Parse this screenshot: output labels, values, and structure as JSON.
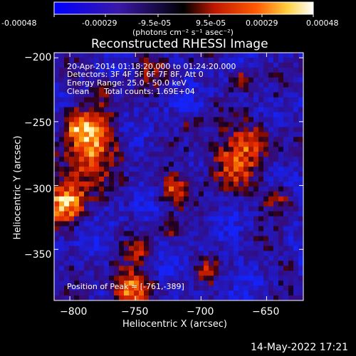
{
  "colorbar": {
    "tick_labels": [
      "-0.00048",
      "-0.00029",
      "-9.5e-05",
      "9.5e-05",
      "0.00029",
      "0.00048"
    ],
    "tick_values": [
      -0.00048,
      -0.00029,
      -9.5e-05,
      9.5e-05,
      0.00029,
      0.00048
    ],
    "unit_label": "(photons cm⁻² s⁻¹ asec⁻²)"
  },
  "chart_data": {
    "type": "heatmap",
    "title": "Reconstructed RHESSI Image",
    "xlabel": "Heliocentric X (arcsec)",
    "ylabel": "Heliocentric Y (arcsec)",
    "xlim": [
      -812,
      -622
    ],
    "ylim": [
      -390,
      -196
    ],
    "x_ticks": [
      -800,
      -750,
      -700,
      -650
    ],
    "y_ticks": [
      -200,
      -250,
      -300,
      -350
    ],
    "x_tick_labels": [
      "−800",
      "−750",
      "−700",
      "−650"
    ],
    "y_tick_labels": [
      "−200",
      "−250",
      "−300",
      "−350"
    ],
    "value_range": [
      -0.00048,
      0.00048
    ],
    "colormap": "blue-black-red-yellow-white",
    "peak_position": [
      -761,
      -389
    ]
  },
  "annotations": {
    "time_range": "20-Apr-2014 01:18:20.000 to 01:24:20.000",
    "detectors": "Detectors: 3F 4F 5F 6F 7F 8F, Att 0",
    "energy": "Energy Range: 25.0 - 50.0 keV",
    "method": "Clean",
    "counts": "Total counts: 1.69E+04",
    "peak": "Position of Peak = [-761,-389]"
  },
  "footer": {
    "date": "14-May-2022 17:21"
  }
}
